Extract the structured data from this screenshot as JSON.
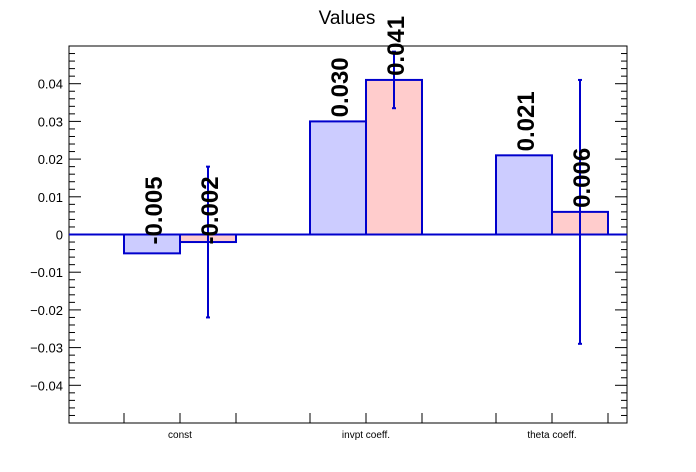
{
  "chart_data": {
    "type": "bar",
    "title": "Values",
    "xlabel": "",
    "ylabel": "",
    "categories": [
      "const",
      "invpt coeff.",
      "theta coeff."
    ],
    "ylim": [
      -0.05,
      0.05
    ],
    "yticks": [
      -0.04,
      -0.03,
      -0.02,
      -0.01,
      0,
      0.01,
      0.02,
      0.03,
      0.04
    ],
    "ytick_labels": [
      "−0.04",
      "−0.03",
      "−0.02",
      "−0.01",
      "0",
      "0.01",
      "0.02",
      "0.03",
      "0.04"
    ],
    "grid": false,
    "series": [
      {
        "values": [
          -0.005,
          0.03,
          0.021
        ],
        "value_labels": [
          "-0.005",
          "0.030",
          "0.021"
        ],
        "fill": "#ccccff",
        "stroke": "#0000cc"
      },
      {
        "values": [
          -0.002,
          0.041,
          0.006
        ],
        "value_labels": [
          "-0.002",
          "0.041",
          "0.006"
        ],
        "errors": [
          0.02,
          0.0075,
          0.035
        ],
        "fill": "#ffcccc",
        "stroke": "#0000cc"
      }
    ]
  }
}
